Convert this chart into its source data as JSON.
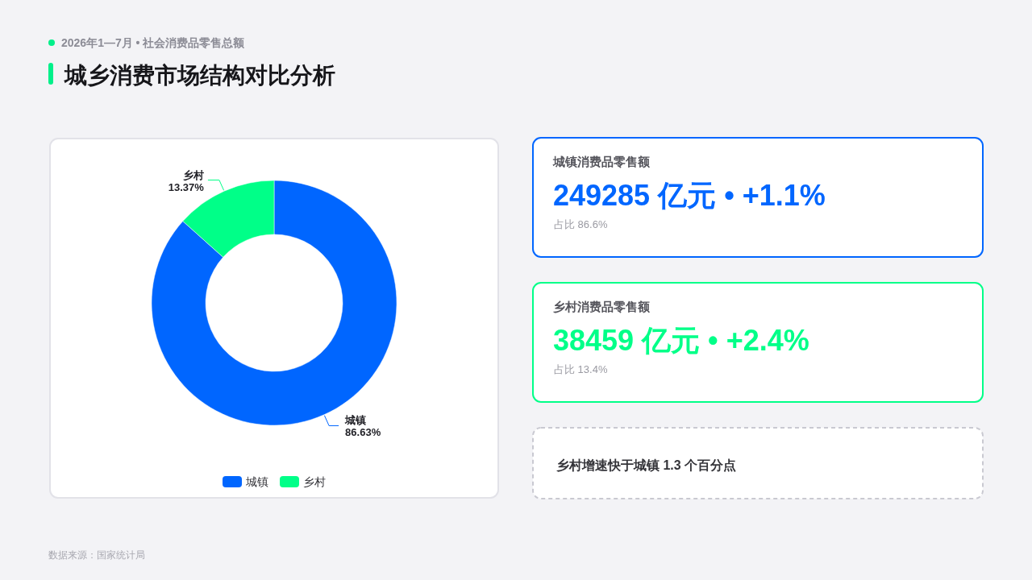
{
  "chart_data": [
    {
      "type": "donut",
      "title": "城乡消费市场结构对比分析",
      "subtitle": "2026年1—7月 • 社会消费品零售总额",
      "categories": [
        "城镇",
        "乡村"
      ],
      "values": [
        86.63,
        13.37
      ],
      "colors": [
        "#0066ff",
        "#00ff88"
      ],
      "value_labels": [
        "86.63%",
        "13.37%"
      ],
      "legend": "bottom",
      "annotations": [
        "数据来源：国家统计局"
      ]
    },
    {
      "type": "other",
      "title": "城镇消费品零售额",
      "annotations": [
        "249285 亿元 • +1.1%",
        "占比 86.6%"
      ],
      "color": "#0066ff"
    },
    {
      "type": "other",
      "title": "乡村消费品零售额",
      "annotations": [
        "38459 亿元 • +2.4%",
        "占比 13.4%"
      ],
      "color": "#00ff88"
    },
    {
      "type": "other",
      "annotations": [
        "乡村增速快于城镇 1.3 个百分点"
      ]
    }
  ]
}
